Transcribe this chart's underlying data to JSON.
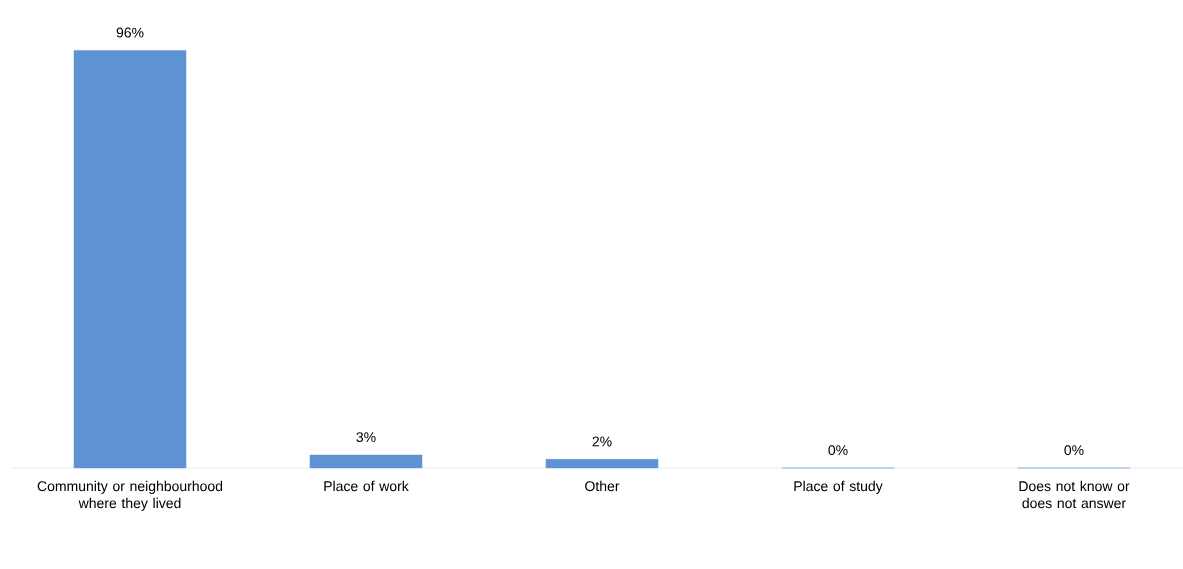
{
  "chart_data": {
    "type": "bar",
    "categories": [
      "Community or neighbourhood where they lived",
      "Place of work",
      "Other",
      "Place of study",
      "Does not know or does not answer"
    ],
    "values": [
      96,
      3,
      2,
      0,
      0
    ],
    "value_labels": [
      "96%",
      "3%",
      "2%",
      "0%",
      "0%"
    ],
    "color": "#5f92d2"
  }
}
